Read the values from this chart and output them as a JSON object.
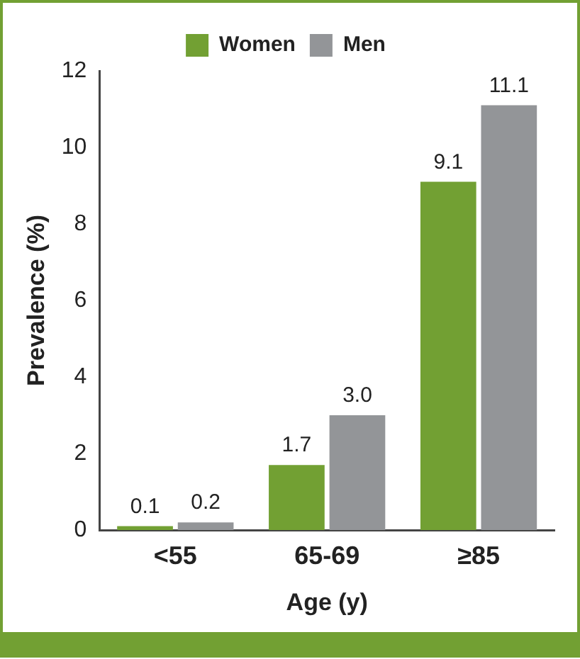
{
  "chart_data": {
    "type": "bar",
    "xlabel": "Age (y)",
    "ylabel": "Prevalence (%)",
    "categories": [
      "<55",
      "65-69",
      "≥85"
    ],
    "series": [
      {
        "name": "Women",
        "color": "#72a033",
        "values": [
          0.1,
          1.7,
          9.1
        ]
      },
      {
        "name": "Men",
        "color": "#939598",
        "values": [
          0.2,
          3.0,
          11.1
        ]
      }
    ],
    "value_labels": [
      [
        "0.1",
        "1.7",
        "9.1"
      ],
      [
        "0.2",
        "3.0",
        "11.1"
      ]
    ],
    "ylim": [
      0,
      12
    ],
    "yticks": [
      0,
      2,
      4,
      6,
      8,
      10,
      12
    ],
    "legend": "top",
    "grid": false
  }
}
